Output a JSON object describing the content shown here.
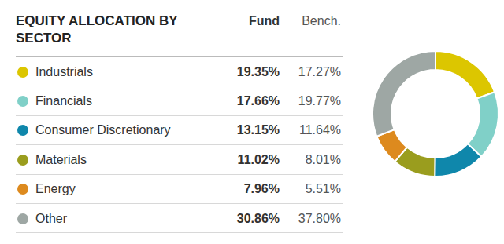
{
  "chart_data": {
    "type": "pie",
    "title": "EQUITY ALLOCATION BY SECTOR",
    "categories": [
      "Industrials",
      "Financials",
      "Consumer Discretionary",
      "Materials",
      "Energy",
      "Other"
    ],
    "colors": [
      "#dcc600",
      "#80d0c8",
      "#0f87ab",
      "#9a9d1e",
      "#dd8a1e",
      "#9ea7a4"
    ],
    "series": [
      {
        "name": "Fund",
        "values": [
          19.35,
          17.66,
          13.15,
          11.02,
          7.96,
          30.86
        ],
        "value_labels": [
          "19.35%",
          "17.66%",
          "13.15%",
          "11.02%",
          "7.96%",
          "30.86%"
        ]
      },
      {
        "name": "Bench.",
        "values": [
          17.27,
          19.77,
          11.64,
          8.01,
          5.51,
          37.8
        ],
        "value_labels": [
          "17.27%",
          "19.77%",
          "11.64%",
          "8.01%",
          "5.51%",
          "37.80%"
        ]
      }
    ]
  }
}
